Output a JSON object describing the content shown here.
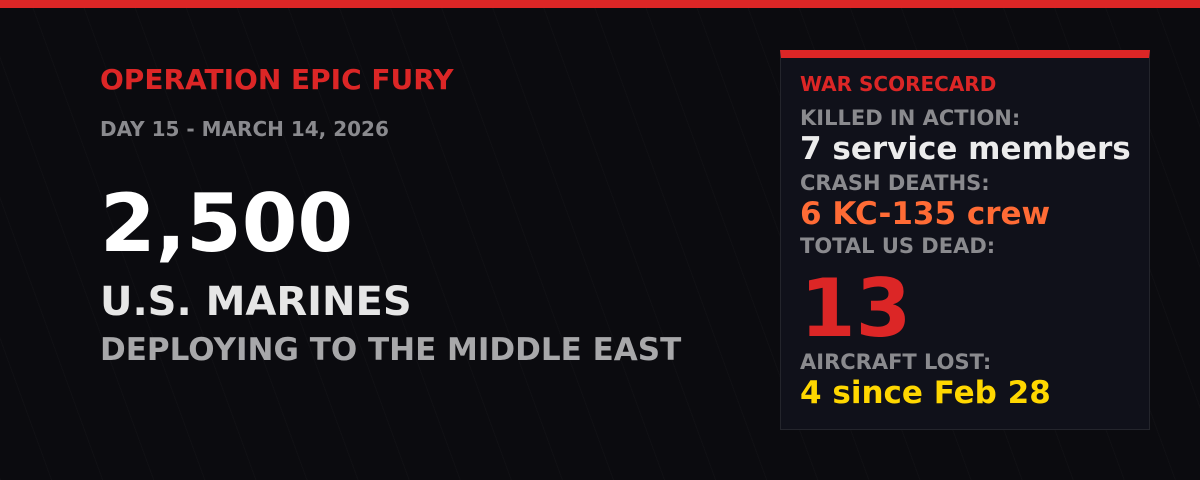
{
  "header": {
    "title": "OPERATION EPIC FURY",
    "subtitle": "DAY 15 - MARCH 14, 2026"
  },
  "main": {
    "count": "2,500",
    "unit": "U.S. MARINES",
    "detail": "DEPLOYING TO THE MIDDLE EAST"
  },
  "scorecard": {
    "title": "WAR SCORECARD",
    "kia_label": "KILLED IN ACTION:",
    "kia_value": "7 service members",
    "crash_label": "CRASH DEATHS:",
    "crash_value": "6 KC-135 crew",
    "total_label": "TOTAL US DEAD:",
    "total_value": "13",
    "aircraft_label": "AIRCRAFT LOST:",
    "aircraft_value": "4 since Feb 28"
  },
  "colors": {
    "accent_red": "#dc2626",
    "crash_orange": "#ff6b35",
    "aircraft_yellow": "#ffd700",
    "background": "#0b0b0f"
  }
}
